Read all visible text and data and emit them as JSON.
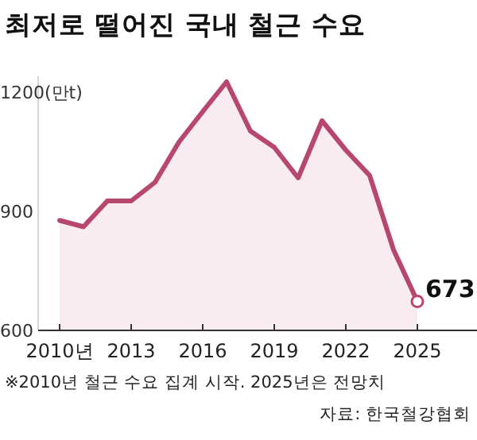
{
  "chart_data": {
    "type": "area",
    "title": "최저로 떨어진 국내 철근 수요",
    "x": [
      2010,
      2011,
      2012,
      2013,
      2014,
      2015,
      2016,
      2017,
      2018,
      2019,
      2020,
      2021,
      2022,
      2023,
      2024,
      2025
    ],
    "series": [
      {
        "color": "#b8476e",
        "values": [
          877,
          861,
          926,
          926,
          973,
          1074,
          1151,
          1226,
          1102,
          1061,
          984,
          1128,
          1054,
          990,
          803,
          673
        ]
      }
    ],
    "xlim": [
      2007.5,
      2027.5
    ],
    "xticks": [
      {
        "value": 2010,
        "label": "2010년"
      },
      2013,
      2016,
      2019,
      2022,
      2025
    ],
    "ylim": [
      600,
      1240
    ],
    "yticks": [
      600,
      900,
      {
        "value": 1200,
        "label": "1200(만t)"
      }
    ],
    "marker": "none",
    "annotations": [
      {
        "text": "673",
        "x": 2025,
        "y": 673
      },
      "※2010년 철근 수요 집계 시작. 2025년은 전망치",
      "자료: 한국철강협회"
    ]
  }
}
